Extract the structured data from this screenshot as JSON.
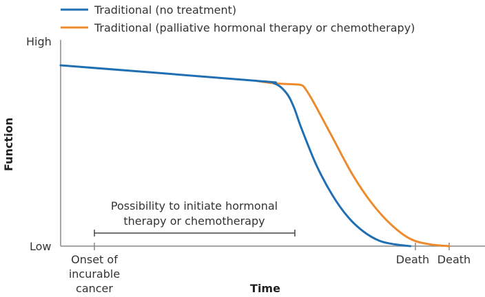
{
  "chart_data": {
    "type": "line",
    "title": "",
    "xlabel": "Time",
    "ylabel": "Function",
    "ytick_labels": {
      "high": "High",
      "low": "Low"
    },
    "xlim": [
      0,
      100
    ],
    "ylim": [
      0,
      100
    ],
    "grid": false,
    "legend_position": "top-left",
    "series": [
      {
        "name": "Traditional (no treatment)",
        "color": "#1f6fb2",
        "x": [
          0,
          50,
          55,
          58,
          60,
          62,
          66,
          70,
          74,
          78,
          82,
          86,
          90
        ],
        "y": [
          100,
          91.5,
          90,
          85,
          77,
          65,
          44,
          28,
          16,
          8,
          3,
          1,
          0
        ]
      },
      {
        "name": "Traditional (palliative hormonal therapy or chemotherapy)",
        "color": "#ee8a2e",
        "x": [
          50,
          55,
          60,
          62,
          63,
          65,
          70,
          75,
          80,
          85,
          90,
          95,
          100
        ],
        "y": [
          91.5,
          90,
          89.5,
          89,
          87,
          80,
          60,
          40,
          24,
          12,
          4,
          1,
          0
        ]
      }
    ],
    "events": [
      {
        "label": "Onset of incurable cancer",
        "x": 10
      },
      {
        "label": "Death",
        "x": 90
      },
      {
        "label": "Death",
        "x": 100
      }
    ],
    "annotation": {
      "lines": [
        "Possibility to initiate hormonal",
        "therapy or chemotherapy"
      ],
      "x_start": 10,
      "x_end": 66
    },
    "event_text": {
      "onset": [
        "Onset of",
        "incurable",
        "cancer"
      ],
      "death1": "Death",
      "death2": "Death"
    }
  }
}
